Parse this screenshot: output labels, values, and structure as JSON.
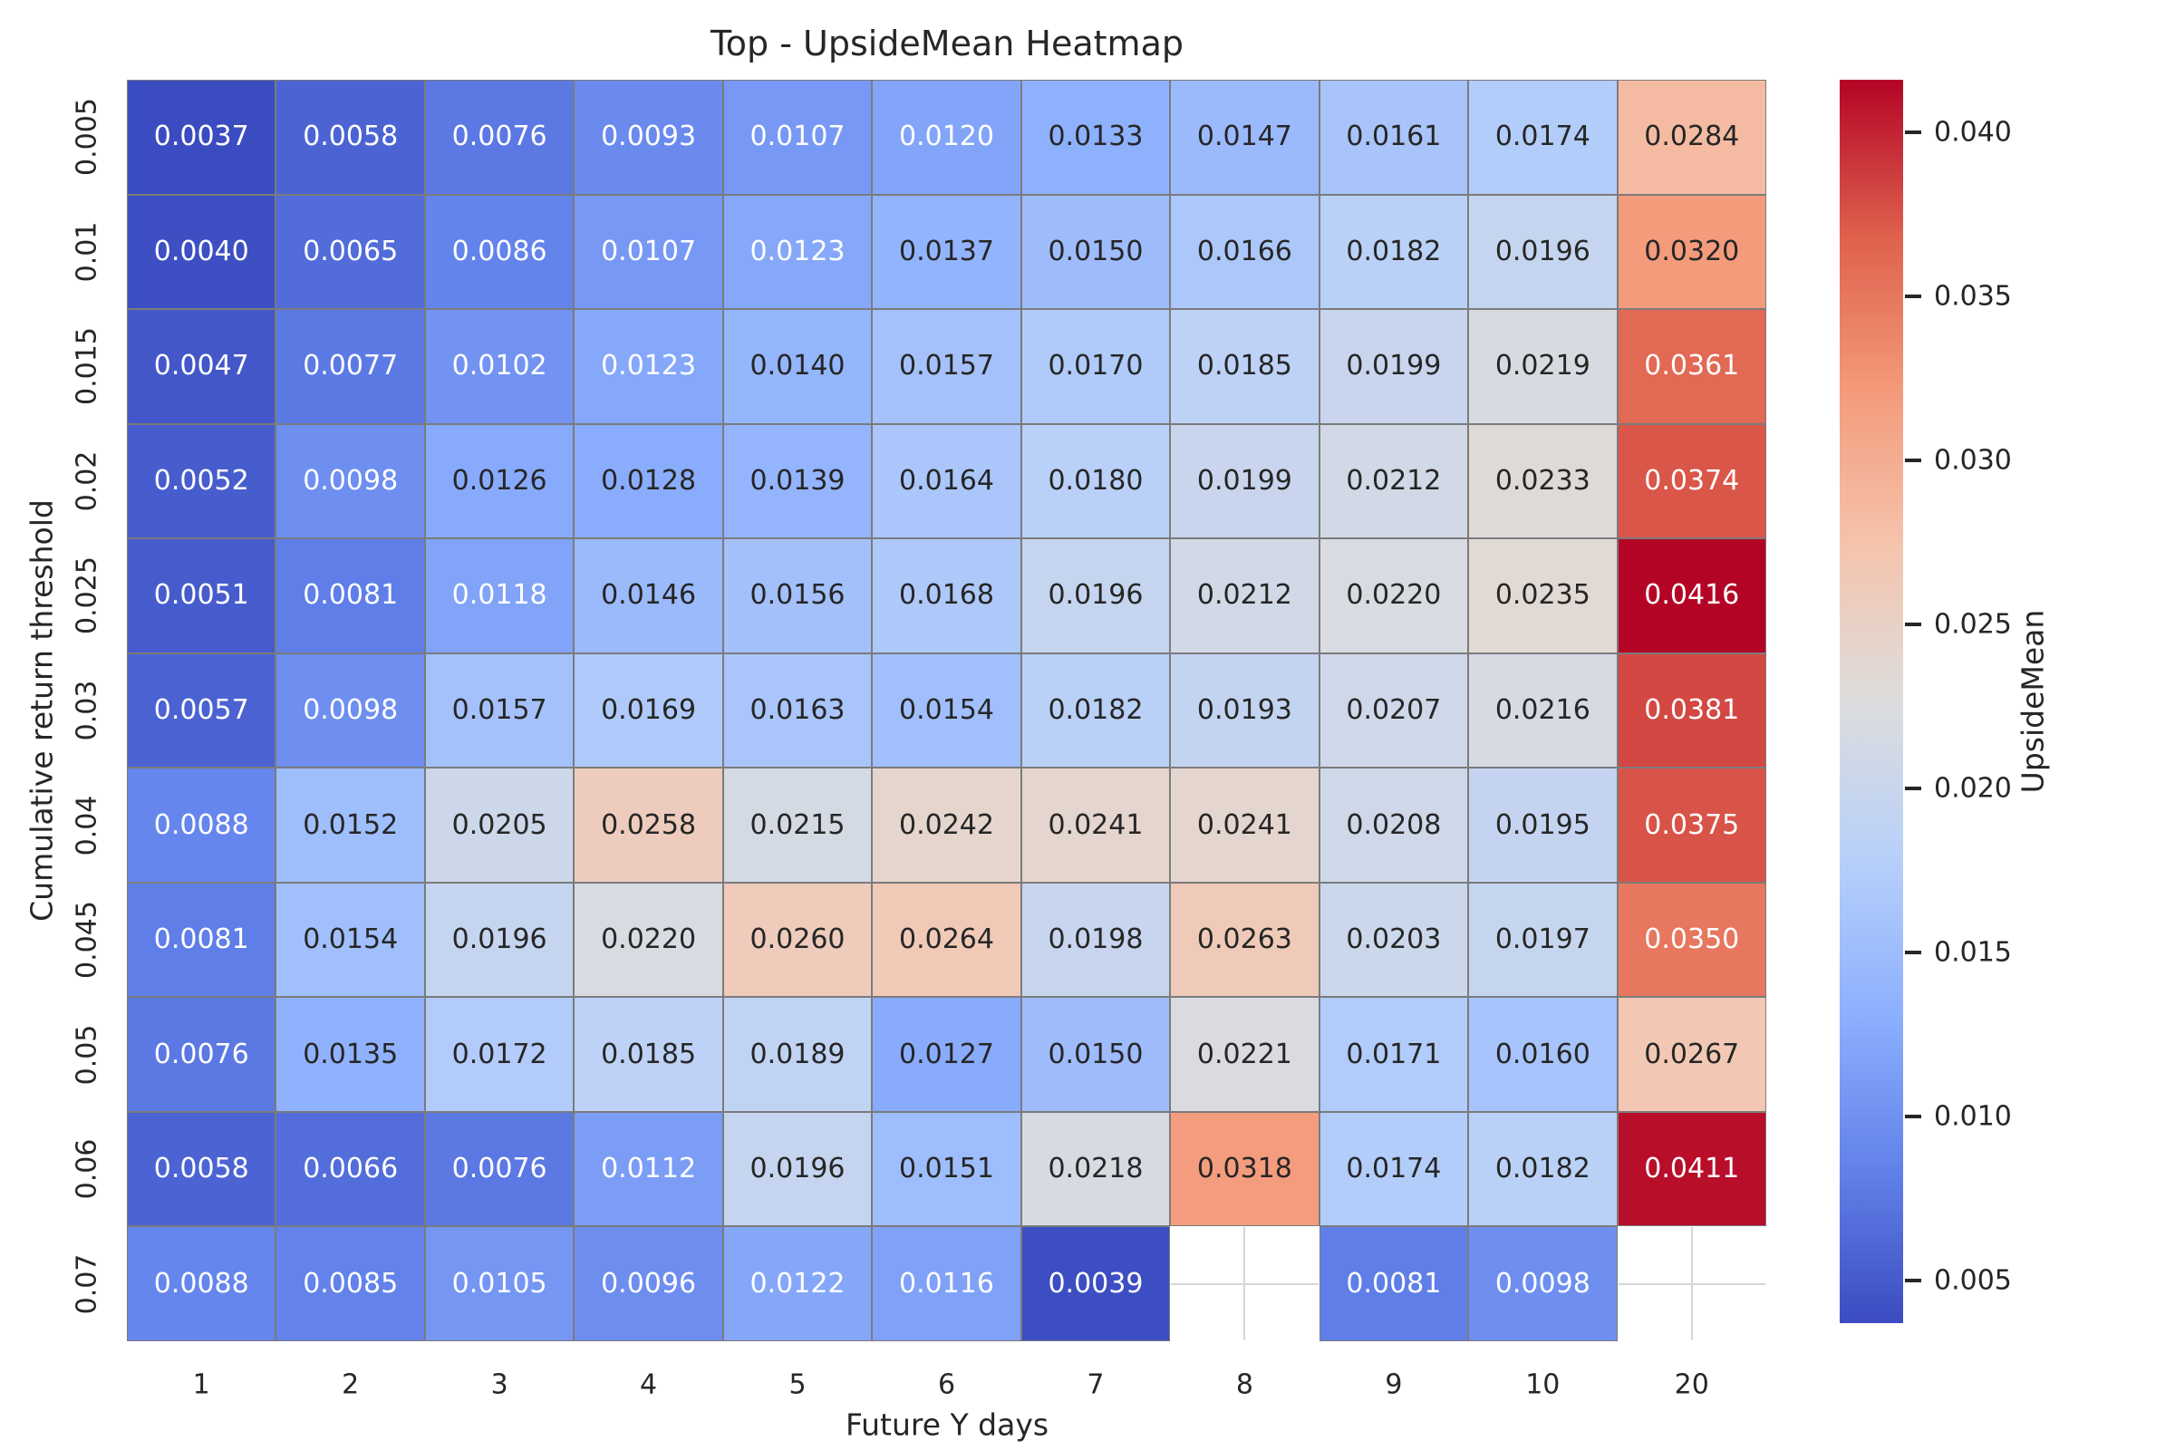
{
  "title": "Top - UpsideMean Heatmap",
  "chart_data": {
    "type": "heatmap",
    "title": "Top - UpsideMean Heatmap",
    "xlabel": "Future Y days",
    "ylabel": "Cumulative return threshold",
    "x_categories": [
      "1",
      "2",
      "3",
      "4",
      "5",
      "6",
      "7",
      "8",
      "9",
      "10",
      "20"
    ],
    "y_categories": [
      "0.005",
      "0.01",
      "0.015",
      "0.02",
      "0.025",
      "0.03",
      "0.04",
      "0.045",
      "0.05",
      "0.06",
      "0.07"
    ],
    "values": [
      [
        0.0037,
        0.0058,
        0.0076,
        0.0093,
        0.0107,
        0.012,
        0.0133,
        0.0147,
        0.0161,
        0.0174,
        0.0284
      ],
      [
        0.004,
        0.0065,
        0.0086,
        0.0107,
        0.0123,
        0.0137,
        0.015,
        0.0166,
        0.0182,
        0.0196,
        0.032
      ],
      [
        0.0047,
        0.0077,
        0.0102,
        0.0123,
        0.014,
        0.0157,
        0.017,
        0.0185,
        0.0199,
        0.0219,
        0.0361
      ],
      [
        0.0052,
        0.0098,
        0.0126,
        0.0128,
        0.0139,
        0.0164,
        0.018,
        0.0199,
        0.0212,
        0.0233,
        0.0374
      ],
      [
        0.0051,
        0.0081,
        0.0118,
        0.0146,
        0.0156,
        0.0168,
        0.0196,
        0.0212,
        0.022,
        0.0235,
        0.0416
      ],
      [
        0.0057,
        0.0098,
        0.0157,
        0.0169,
        0.0163,
        0.0154,
        0.0182,
        0.0193,
        0.0207,
        0.0216,
        0.0381
      ],
      [
        0.0088,
        0.0152,
        0.0205,
        0.0258,
        0.0215,
        0.0242,
        0.0241,
        0.0241,
        0.0208,
        0.0195,
        0.0375
      ],
      [
        0.0081,
        0.0154,
        0.0196,
        0.022,
        0.026,
        0.0264,
        0.0198,
        0.0263,
        0.0203,
        0.0197,
        0.035
      ],
      [
        0.0076,
        0.0135,
        0.0172,
        0.0185,
        0.0189,
        0.0127,
        0.015,
        0.0221,
        0.0171,
        0.016,
        0.0267
      ],
      [
        0.0058,
        0.0066,
        0.0076,
        0.0112,
        0.0196,
        0.0151,
        0.0218,
        0.0318,
        0.0174,
        0.0182,
        0.0411
      ],
      [
        0.0088,
        0.0085,
        0.0105,
        0.0096,
        0.0122,
        0.0116,
        0.0039,
        null,
        0.0081,
        0.0098,
        null
      ]
    ],
    "value_format": "%.4f",
    "colormap": "coolwarm",
    "vmin": 0.0037,
    "vmax": 0.0416,
    "grid": true,
    "colorbar": {
      "label": "UpsideMean",
      "ticks": [
        0.005,
        0.01,
        0.015,
        0.02,
        0.025,
        0.03,
        0.035,
        0.04
      ],
      "position": "right"
    },
    "colors": {
      "cell_border": "#7b7b7b",
      "blank_gridline": "#d6d6d6",
      "text_dark": "#262626",
      "text_light": "#ffffff",
      "min_color": "#3b4cc0",
      "mid_color": "#dddddd",
      "max_color": "#b40426"
    }
  }
}
